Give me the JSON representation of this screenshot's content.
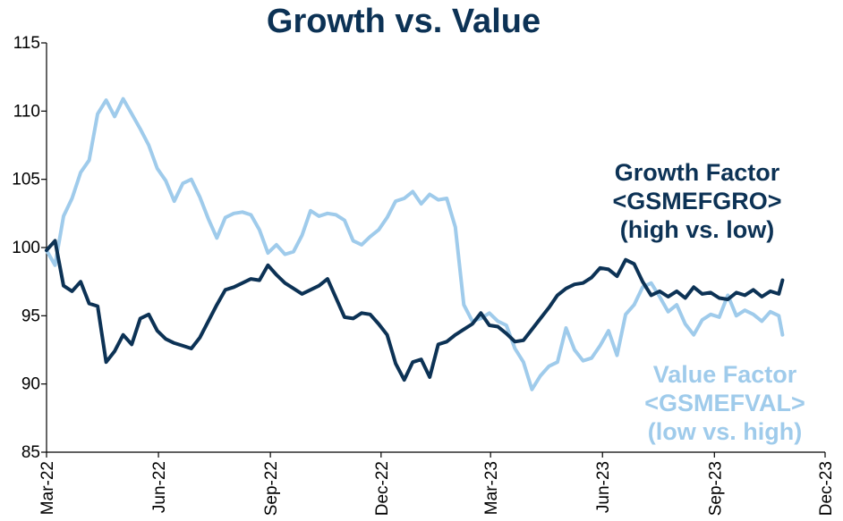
{
  "colors": {
    "growth": "#0c3255",
    "value": "#9fcbeb",
    "axis": "#000000"
  },
  "chart_data": {
    "type": "line",
    "title": "Growth vs. Value",
    "xlabel": "",
    "ylabel": "",
    "x_ticks": [
      "Mar-22",
      "Jun-22",
      "Sep-22",
      "Dec-22",
      "Mar-23",
      "Jun-23",
      "Sep-23",
      "Dec-23"
    ],
    "y_ticks": [
      85,
      90,
      95,
      100,
      105,
      110,
      115
    ],
    "ylim": [
      85,
      115
    ],
    "grid": false,
    "legend": "none",
    "annotations": [
      {
        "series": "growth",
        "lines": [
          "Growth Factor",
          "<GSMEFGRO>",
          "(high vs. low)"
        ]
      },
      {
        "series": "value",
        "lines": [
          "Value Factor",
          "<GSMEFVAL>",
          "(low vs. high)"
        ]
      }
    ],
    "series": [
      {
        "key": "growth",
        "x": [
          "2022-03-01",
          "2022-03-08",
          "2022-03-15",
          "2022-03-22",
          "2022-03-29",
          "2022-04-05",
          "2022-04-12",
          "2022-04-19",
          "2022-04-26",
          "2022-05-03",
          "2022-05-10",
          "2022-05-17",
          "2022-05-24",
          "2022-05-31",
          "2022-06-07",
          "2022-06-14",
          "2022-06-21",
          "2022-06-28",
          "2022-07-05",
          "2022-07-12",
          "2022-07-19",
          "2022-07-26",
          "2022-08-02",
          "2022-08-09",
          "2022-08-16",
          "2022-08-23",
          "2022-08-30",
          "2022-09-06",
          "2022-09-13",
          "2022-09-20",
          "2022-09-27",
          "2022-10-04",
          "2022-10-11",
          "2022-10-18",
          "2022-10-25",
          "2022-11-01",
          "2022-11-08",
          "2022-11-15",
          "2022-11-22",
          "2022-11-29",
          "2022-12-06",
          "2022-12-13",
          "2022-12-20",
          "2022-12-27",
          "2023-01-03",
          "2023-01-10",
          "2023-01-17",
          "2023-01-24",
          "2023-01-31",
          "2023-02-07",
          "2023-02-14",
          "2023-02-21",
          "2023-02-28",
          "2023-03-07",
          "2023-03-14",
          "2023-03-21",
          "2023-03-28",
          "2023-04-04",
          "2023-04-11",
          "2023-04-18",
          "2023-04-25",
          "2023-05-02",
          "2023-05-09",
          "2023-05-16",
          "2023-05-23",
          "2023-05-30",
          "2023-06-06",
          "2023-06-13",
          "2023-06-20",
          "2023-06-27",
          "2023-07-04",
          "2023-07-11",
          "2023-07-18",
          "2023-07-25",
          "2023-08-01",
          "2023-08-08",
          "2023-08-15",
          "2023-08-22",
          "2023-08-29",
          "2023-09-05",
          "2023-09-12",
          "2023-09-19",
          "2023-09-26",
          "2023-10-03",
          "2023-10-10",
          "2023-10-17",
          "2023-10-24",
          "2023-10-27"
        ],
        "values": [
          99.8,
          100.5,
          97.2,
          96.8,
          97.5,
          95.9,
          95.7,
          91.6,
          92.4,
          93.6,
          92.9,
          94.8,
          95.1,
          93.9,
          93.3,
          93.0,
          92.8,
          92.6,
          93.4,
          94.6,
          95.8,
          96.9,
          97.1,
          97.4,
          97.7,
          97.6,
          98.7,
          98.0,
          97.4,
          97.0,
          96.6,
          96.9,
          97.2,
          97.7,
          96.3,
          94.9,
          94.8,
          95.2,
          95.1,
          94.4,
          93.6,
          91.5,
          90.3,
          91.6,
          91.8,
          90.5,
          92.9,
          93.1,
          93.6,
          94.0,
          94.4,
          95.2,
          94.3,
          94.2,
          93.7,
          93.1,
          93.2,
          94.0,
          94.8,
          95.6,
          96.5,
          97.0,
          97.3,
          97.4,
          97.8,
          98.5,
          98.4,
          97.9,
          99.1,
          98.8,
          97.5,
          96.5,
          96.8,
          96.4,
          96.8,
          96.3,
          97.1,
          96.6,
          96.7,
          96.3,
          96.2,
          96.7,
          96.5,
          96.9,
          96.4,
          96.8,
          96.6,
          97.6
        ]
      },
      {
        "key": "value",
        "x": [
          "2022-03-01",
          "2022-03-08",
          "2022-03-15",
          "2022-03-22",
          "2022-03-29",
          "2022-04-05",
          "2022-04-12",
          "2022-04-19",
          "2022-04-26",
          "2022-05-03",
          "2022-05-10",
          "2022-05-17",
          "2022-05-24",
          "2022-05-31",
          "2022-06-07",
          "2022-06-14",
          "2022-06-21",
          "2022-06-28",
          "2022-07-05",
          "2022-07-12",
          "2022-07-19",
          "2022-07-26",
          "2022-08-02",
          "2022-08-09",
          "2022-08-16",
          "2022-08-23",
          "2022-08-30",
          "2022-09-06",
          "2022-09-13",
          "2022-09-20",
          "2022-09-27",
          "2022-10-04",
          "2022-10-11",
          "2022-10-18",
          "2022-10-25",
          "2022-11-01",
          "2022-11-08",
          "2022-11-15",
          "2022-11-22",
          "2022-11-29",
          "2022-12-06",
          "2022-12-13",
          "2022-12-20",
          "2022-12-27",
          "2023-01-03",
          "2023-01-10",
          "2023-01-17",
          "2023-01-24",
          "2023-01-31",
          "2023-02-07",
          "2023-02-14",
          "2023-02-21",
          "2023-02-28",
          "2023-03-07",
          "2023-03-14",
          "2023-03-21",
          "2023-03-28",
          "2023-04-04",
          "2023-04-11",
          "2023-04-18",
          "2023-04-25",
          "2023-05-02",
          "2023-05-09",
          "2023-05-16",
          "2023-05-23",
          "2023-05-30",
          "2023-06-06",
          "2023-06-13",
          "2023-06-20",
          "2023-06-27",
          "2023-07-04",
          "2023-07-11",
          "2023-07-18",
          "2023-07-25",
          "2023-08-01",
          "2023-08-08",
          "2023-08-15",
          "2023-08-22",
          "2023-08-29",
          "2023-09-05",
          "2023-09-12",
          "2023-09-19",
          "2023-09-26",
          "2023-10-03",
          "2023-10-10",
          "2023-10-17",
          "2023-10-24",
          "2023-10-27"
        ],
        "values": [
          99.8,
          98.7,
          102.3,
          103.6,
          105.5,
          106.4,
          109.8,
          110.8,
          109.6,
          110.9,
          109.8,
          108.7,
          107.5,
          105.8,
          104.9,
          103.4,
          104.7,
          105.0,
          103.7,
          102.1,
          100.7,
          102.2,
          102.5,
          102.6,
          102.4,
          101.3,
          99.6,
          100.2,
          99.5,
          99.7,
          100.9,
          102.7,
          102.3,
          102.5,
          102.4,
          102.0,
          100.5,
          100.2,
          100.8,
          101.3,
          102.2,
          103.4,
          103.6,
          104.1,
          103.2,
          103.9,
          103.5,
          103.6,
          101.5,
          95.8,
          94.6,
          94.8,
          95.2,
          94.6,
          94.3,
          92.6,
          91.6,
          89.6,
          90.6,
          91.3,
          91.6,
          94.1,
          92.5,
          91.7,
          91.9,
          92.8,
          93.9,
          92.1,
          95.1,
          95.8,
          97.1,
          97.4,
          96.4,
          95.3,
          95.8,
          94.4,
          93.6,
          94.7,
          95.1,
          94.9,
          96.5,
          95.0,
          95.4,
          95.1,
          94.6,
          95.3,
          95.0,
          93.6
        ]
      }
    ]
  }
}
